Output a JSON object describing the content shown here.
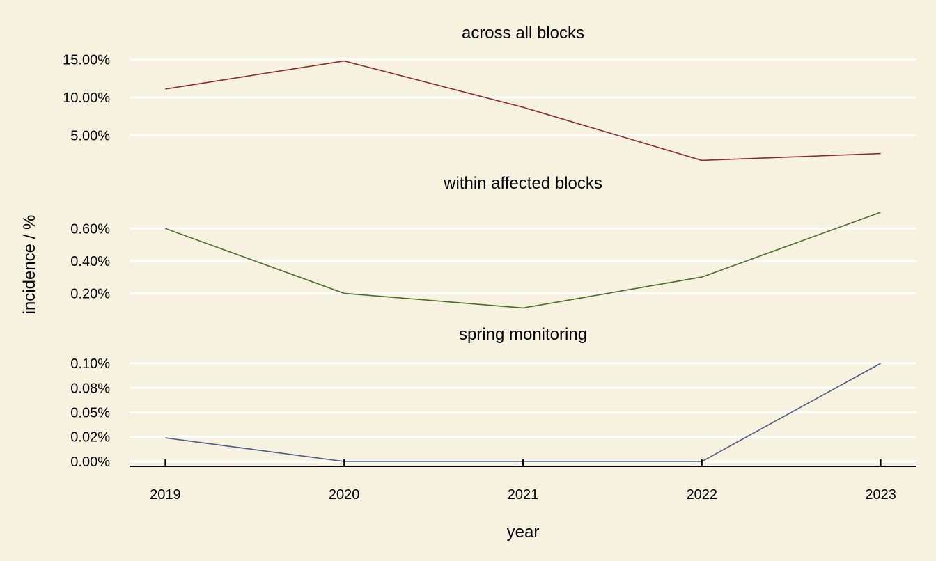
{
  "chart_data": {
    "type": "line",
    "xlabel": "year",
    "ylabel": "incidence / %",
    "x": [
      2019,
      2020,
      2021,
      2022,
      2023
    ],
    "xlim": [
      2018.8,
      2023.2
    ],
    "grid": "horizontal",
    "panels": [
      {
        "title": "across all blocks",
        "color": "#8b2a2a",
        "values": [
          0.111,
          0.148,
          0.087,
          0.017,
          0.026
        ],
        "ylim": [
          0.01,
          0.155
        ],
        "yticks": [
          0.05,
          0.1,
          0.15
        ],
        "ytick_labels": [
          "5.00%",
          "10.00%",
          "15.00%"
        ]
      },
      {
        "title": "within affected blocks",
        "color": "#4a6b2a",
        "values": [
          0.006,
          0.002,
          0.0011,
          0.003,
          0.007
        ],
        "ylim": [
          0.0006,
          0.0073
        ],
        "yticks": [
          0.002,
          0.004,
          0.006
        ],
        "ytick_labels": [
          "0.20%",
          "0.40%",
          "0.60%"
        ]
      },
      {
        "title": "spring monitoring",
        "color": "#4a5a80",
        "values": [
          0.00024,
          0.0,
          0.0,
          0.0,
          0.001
        ],
        "ylim": [
          -5e-05,
          0.00105
        ],
        "yticks": [
          0.0,
          0.00025,
          0.0005,
          0.00075,
          0.001
        ],
        "ytick_labels": [
          "0.00%",
          "0.02%",
          "0.05%",
          "0.08%",
          "0.10%"
        ]
      }
    ]
  }
}
